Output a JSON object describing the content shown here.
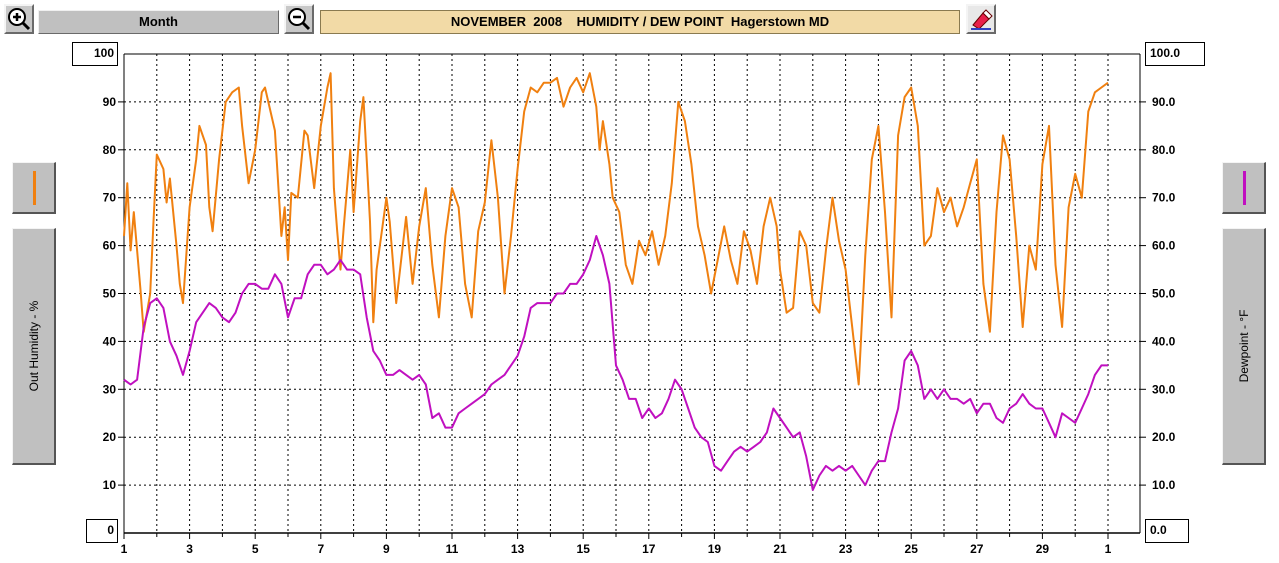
{
  "toolbar": {
    "period_label": "Month",
    "title": "NOVEMBER  2008    HUMIDITY / DEW POINT  Hagerstown MD",
    "zoom_in_icon": "zoom-in-icon",
    "zoom_out_icon": "zoom-out-icon",
    "extra_icon": "eraser-icon"
  },
  "left_panel": {
    "axis_label": "Out Humidity - %",
    "legend_color": "#f08010"
  },
  "right_panel": {
    "axis_label": "Dewpoint - °F",
    "legend_color": "#c010c0"
  },
  "chart_data": {
    "type": "line",
    "title": "NOVEMBER  2008    HUMIDITY / DEW POINT  Hagerstown MD",
    "x_tick_labels": [
      "1",
      "3",
      "5",
      "7",
      "9",
      "11",
      "13",
      "15",
      "17",
      "19",
      "21",
      "23",
      "25",
      "27",
      "29",
      "1"
    ],
    "x_range": [
      1,
      31
    ],
    "left_axis": {
      "label": "Out Humidity - %",
      "range": [
        0,
        100
      ],
      "ticks": [
        "100",
        "90",
        "80",
        "70",
        "60",
        "50",
        "40",
        "30",
        "20",
        "10",
        "0"
      ]
    },
    "right_axis": {
      "label": "Dewpoint - °F",
      "range": [
        0,
        100
      ],
      "ticks": [
        "100.0",
        "90.0",
        "80.0",
        "70.0",
        "60.0",
        "50.0",
        "40.0",
        "30.0",
        "20.0",
        "10.0",
        "0.0"
      ]
    },
    "grid": true,
    "series": [
      {
        "name": "Out Humidity - %",
        "color": "#f08010",
        "axis": "left",
        "points": [
          [
            1.0,
            62
          ],
          [
            1.1,
            73
          ],
          [
            1.2,
            59
          ],
          [
            1.3,
            67
          ],
          [
            1.5,
            51
          ],
          [
            1.6,
            42
          ],
          [
            1.8,
            50
          ],
          [
            1.9,
            65
          ],
          [
            2.0,
            79
          ],
          [
            2.2,
            76
          ],
          [
            2.3,
            69
          ],
          [
            2.4,
            74
          ],
          [
            2.6,
            60
          ],
          [
            2.7,
            52
          ],
          [
            2.8,
            48
          ],
          [
            3.0,
            68
          ],
          [
            3.2,
            78
          ],
          [
            3.3,
            85
          ],
          [
            3.5,
            81
          ],
          [
            3.6,
            68
          ],
          [
            3.7,
            63
          ],
          [
            3.9,
            78
          ],
          [
            4.1,
            90
          ],
          [
            4.3,
            92
          ],
          [
            4.5,
            93
          ],
          [
            4.6,
            85
          ],
          [
            4.8,
            73
          ],
          [
            5.0,
            80
          ],
          [
            5.2,
            92
          ],
          [
            5.3,
            93
          ],
          [
            5.6,
            84
          ],
          [
            5.8,
            62
          ],
          [
            5.9,
            68
          ],
          [
            6.0,
            57
          ],
          [
            6.1,
            71
          ],
          [
            6.3,
            70
          ],
          [
            6.5,
            84
          ],
          [
            6.6,
            83
          ],
          [
            6.8,
            72
          ],
          [
            7.0,
            85
          ],
          [
            7.2,
            93
          ],
          [
            7.3,
            96
          ],
          [
            7.4,
            72
          ],
          [
            7.5,
            63
          ],
          [
            7.6,
            55
          ],
          [
            7.7,
            64
          ],
          [
            7.9,
            80
          ],
          [
            8.0,
            67
          ],
          [
            8.2,
            86
          ],
          [
            8.3,
            91
          ],
          [
            8.5,
            65
          ],
          [
            8.6,
            44
          ],
          [
            8.7,
            55
          ],
          [
            9.0,
            70
          ],
          [
            9.1,
            65
          ],
          [
            9.3,
            48
          ],
          [
            9.6,
            66
          ],
          [
            9.8,
            52
          ],
          [
            10.0,
            64
          ],
          [
            10.2,
            72
          ],
          [
            10.4,
            56
          ],
          [
            10.6,
            45
          ],
          [
            10.8,
            62
          ],
          [
            11.0,
            72
          ],
          [
            11.2,
            68
          ],
          [
            11.4,
            52
          ],
          [
            11.6,
            45
          ],
          [
            11.8,
            63
          ],
          [
            12.0,
            69
          ],
          [
            12.2,
            82
          ],
          [
            12.4,
            70
          ],
          [
            12.6,
            50
          ],
          [
            12.8,
            62
          ],
          [
            13.0,
            76
          ],
          [
            13.2,
            88
          ],
          [
            13.4,
            93
          ],
          [
            13.6,
            92
          ],
          [
            13.8,
            94
          ],
          [
            14.0,
            94
          ],
          [
            14.2,
            95
          ],
          [
            14.4,
            89
          ],
          [
            14.6,
            93
          ],
          [
            14.8,
            95
          ],
          [
            15.0,
            92
          ],
          [
            15.2,
            96
          ],
          [
            15.4,
            89
          ],
          [
            15.5,
            80
          ],
          [
            15.6,
            86
          ],
          [
            15.8,
            77
          ],
          [
            15.9,
            70
          ],
          [
            16.1,
            67
          ],
          [
            16.3,
            56
          ],
          [
            16.5,
            52
          ],
          [
            16.7,
            61
          ],
          [
            16.9,
            58
          ],
          [
            17.1,
            63
          ],
          [
            17.3,
            56
          ],
          [
            17.5,
            62
          ],
          [
            17.7,
            73
          ],
          [
            17.9,
            90
          ],
          [
            18.1,
            86
          ],
          [
            18.3,
            77
          ],
          [
            18.5,
            64
          ],
          [
            18.7,
            58
          ],
          [
            18.9,
            50
          ],
          [
            19.1,
            57
          ],
          [
            19.3,
            64
          ],
          [
            19.5,
            57
          ],
          [
            19.7,
            52
          ],
          [
            19.9,
            63
          ],
          [
            20.1,
            59
          ],
          [
            20.3,
            52
          ],
          [
            20.5,
            64
          ],
          [
            20.7,
            70
          ],
          [
            20.9,
            64
          ],
          [
            21.0,
            55
          ],
          [
            21.2,
            46
          ],
          [
            21.4,
            47
          ],
          [
            21.6,
            63
          ],
          [
            21.8,
            60
          ],
          [
            22.0,
            48
          ],
          [
            22.2,
            46
          ],
          [
            22.4,
            59
          ],
          [
            22.6,
            70
          ],
          [
            22.8,
            61
          ],
          [
            23.0,
            55
          ],
          [
            23.2,
            43
          ],
          [
            23.4,
            31
          ],
          [
            23.6,
            58
          ],
          [
            23.8,
            78
          ],
          [
            24.0,
            85
          ],
          [
            24.2,
            67
          ],
          [
            24.4,
            45
          ],
          [
            24.6,
            83
          ],
          [
            24.8,
            91
          ],
          [
            25.0,
            93
          ],
          [
            25.2,
            85
          ],
          [
            25.4,
            60
          ],
          [
            25.6,
            62
          ],
          [
            25.8,
            72
          ],
          [
            26.0,
            67
          ],
          [
            26.2,
            70
          ],
          [
            26.4,
            64
          ],
          [
            26.6,
            68
          ],
          [
            26.8,
            73
          ],
          [
            27.0,
            78
          ],
          [
            27.2,
            52
          ],
          [
            27.4,
            42
          ],
          [
            27.6,
            67
          ],
          [
            27.8,
            83
          ],
          [
            28.0,
            78
          ],
          [
            28.2,
            62
          ],
          [
            28.4,
            43
          ],
          [
            28.6,
            60
          ],
          [
            28.8,
            55
          ],
          [
            29.0,
            77
          ],
          [
            29.2,
            85
          ],
          [
            29.4,
            56
          ],
          [
            29.6,
            43
          ],
          [
            29.8,
            68
          ],
          [
            30.0,
            75
          ],
          [
            30.2,
            70
          ],
          [
            30.4,
            88
          ],
          [
            30.6,
            92
          ],
          [
            30.8,
            93
          ],
          [
            31.0,
            94
          ]
        ]
      },
      {
        "name": "Dewpoint - °F",
        "color": "#c010c0",
        "axis": "right",
        "points": [
          [
            1.0,
            32
          ],
          [
            1.2,
            31
          ],
          [
            1.4,
            32
          ],
          [
            1.6,
            43
          ],
          [
            1.8,
            48
          ],
          [
            2.0,
            49
          ],
          [
            2.2,
            47
          ],
          [
            2.4,
            40
          ],
          [
            2.6,
            37
          ],
          [
            2.8,
            33
          ],
          [
            3.0,
            38
          ],
          [
            3.2,
            44
          ],
          [
            3.4,
            46
          ],
          [
            3.6,
            48
          ],
          [
            3.8,
            47
          ],
          [
            4.0,
            45
          ],
          [
            4.2,
            44
          ],
          [
            4.4,
            46
          ],
          [
            4.6,
            50
          ],
          [
            4.8,
            52
          ],
          [
            5.0,
            52
          ],
          [
            5.2,
            51
          ],
          [
            5.4,
            51
          ],
          [
            5.6,
            54
          ],
          [
            5.8,
            52
          ],
          [
            6.0,
            45
          ],
          [
            6.2,
            49
          ],
          [
            6.4,
            49
          ],
          [
            6.6,
            54
          ],
          [
            6.8,
            56
          ],
          [
            7.0,
            56
          ],
          [
            7.2,
            54
          ],
          [
            7.4,
            55
          ],
          [
            7.6,
            57
          ],
          [
            7.8,
            55
          ],
          [
            8.0,
            55
          ],
          [
            8.2,
            54
          ],
          [
            8.4,
            45
          ],
          [
            8.6,
            38
          ],
          [
            8.8,
            36
          ],
          [
            9.0,
            33
          ],
          [
            9.2,
            33
          ],
          [
            9.4,
            34
          ],
          [
            9.6,
            33
          ],
          [
            9.8,
            32
          ],
          [
            10.0,
            33
          ],
          [
            10.2,
            31
          ],
          [
            10.4,
            24
          ],
          [
            10.6,
            25
          ],
          [
            10.8,
            22
          ],
          [
            11.0,
            22
          ],
          [
            11.2,
            25
          ],
          [
            11.4,
            26
          ],
          [
            11.6,
            27
          ],
          [
            11.8,
            28
          ],
          [
            12.0,
            29
          ],
          [
            12.2,
            31
          ],
          [
            12.4,
            32
          ],
          [
            12.6,
            33
          ],
          [
            12.8,
            35
          ],
          [
            13.0,
            37
          ],
          [
            13.2,
            41
          ],
          [
            13.4,
            47
          ],
          [
            13.6,
            48
          ],
          [
            13.8,
            48
          ],
          [
            14.0,
            48
          ],
          [
            14.2,
            50
          ],
          [
            14.4,
            50
          ],
          [
            14.6,
            52
          ],
          [
            14.8,
            52
          ],
          [
            15.0,
            54
          ],
          [
            15.2,
            57
          ],
          [
            15.4,
            62
          ],
          [
            15.6,
            58
          ],
          [
            15.8,
            52
          ],
          [
            16.0,
            35
          ],
          [
            16.2,
            32
          ],
          [
            16.4,
            28
          ],
          [
            16.6,
            28
          ],
          [
            16.8,
            24
          ],
          [
            17.0,
            26
          ],
          [
            17.2,
            24
          ],
          [
            17.4,
            25
          ],
          [
            17.6,
            28
          ],
          [
            17.8,
            32
          ],
          [
            18.0,
            30
          ],
          [
            18.2,
            26
          ],
          [
            18.4,
            22
          ],
          [
            18.6,
            20
          ],
          [
            18.8,
            19
          ],
          [
            19.0,
            14
          ],
          [
            19.2,
            13
          ],
          [
            19.4,
            15
          ],
          [
            19.6,
            17
          ],
          [
            19.8,
            18
          ],
          [
            20.0,
            17
          ],
          [
            20.2,
            18
          ],
          [
            20.4,
            19
          ],
          [
            20.6,
            21
          ],
          [
            20.8,
            26
          ],
          [
            21.0,
            24
          ],
          [
            21.2,
            22
          ],
          [
            21.4,
            20
          ],
          [
            21.6,
            21
          ],
          [
            21.8,
            16
          ],
          [
            22.0,
            9
          ],
          [
            22.2,
            12
          ],
          [
            22.4,
            14
          ],
          [
            22.6,
            13
          ],
          [
            22.8,
            14
          ],
          [
            23.0,
            13
          ],
          [
            23.2,
            14
          ],
          [
            23.4,
            12
          ],
          [
            23.6,
            10
          ],
          [
            23.8,
            13
          ],
          [
            24.0,
            15
          ],
          [
            24.2,
            15
          ],
          [
            24.4,
            21
          ],
          [
            24.6,
            26
          ],
          [
            24.8,
            36
          ],
          [
            25.0,
            38
          ],
          [
            25.2,
            35
          ],
          [
            25.4,
            28
          ],
          [
            25.6,
            30
          ],
          [
            25.8,
            28
          ],
          [
            26.0,
            30
          ],
          [
            26.2,
            28
          ],
          [
            26.4,
            28
          ],
          [
            26.6,
            27
          ],
          [
            26.8,
            28
          ],
          [
            27.0,
            25
          ],
          [
            27.2,
            27
          ],
          [
            27.4,
            27
          ],
          [
            27.6,
            24
          ],
          [
            27.8,
            23
          ],
          [
            28.0,
            26
          ],
          [
            28.2,
            27
          ],
          [
            28.4,
            29
          ],
          [
            28.6,
            27
          ],
          [
            28.8,
            26
          ],
          [
            29.0,
            26
          ],
          [
            29.2,
            23
          ],
          [
            29.4,
            20
          ],
          [
            29.6,
            25
          ],
          [
            29.8,
            24
          ],
          [
            30.0,
            23
          ],
          [
            30.2,
            26
          ],
          [
            30.4,
            29
          ],
          [
            30.6,
            33
          ],
          [
            30.8,
            35
          ],
          [
            31.0,
            35
          ]
        ]
      }
    ]
  }
}
